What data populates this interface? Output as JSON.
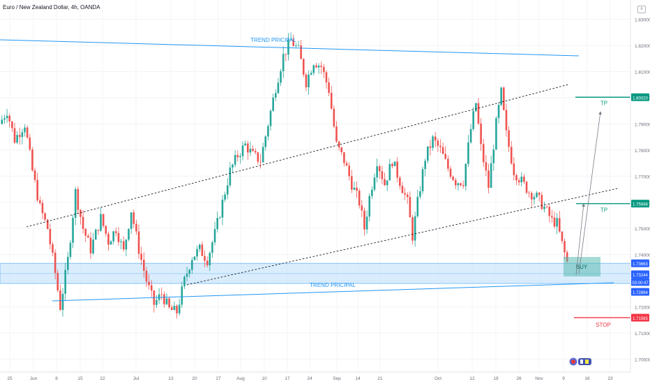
{
  "header": {
    "title": "Euro / New Zealand Dollar, 4h, OANDA"
  },
  "colors": {
    "up": "#26a69a",
    "down": "#ef5350",
    "trendline": "#2196f3",
    "tp": "#089981",
    "stop": "#f23645",
    "zone": "#bbdefb",
    "buy_box": "#4db6ac"
  },
  "annotations": {
    "trend_top": "TREND PRICIPAL",
    "trend_bottom": "TREND PRICIPAL",
    "buy": "BUY",
    "tp1": "TP",
    "tp2": "TP",
    "stop": "STOP"
  },
  "price_badges": {
    "tp1": "1.80020",
    "tp2": "1.75948",
    "zone_top": "1.73663",
    "current": "1.73244",
    "countdown": "03:00:47",
    "zone_bottom": "1.72894",
    "stop": "1.71585"
  },
  "chart_data": {
    "type": "candlestick",
    "symbol": "EURNZD",
    "timeframe": "4h",
    "ylim": [
      1.695,
      1.835
    ],
    "y_ticks": [
      "1.83000",
      "1.82000",
      "1.81000",
      "1.80000",
      "1.79000",
      "1.78000",
      "1.77000",
      "1.76000",
      "1.75000",
      "1.74000",
      "1.73000",
      "1.72000",
      "1.71000",
      "1.70000"
    ],
    "x_ticks": [
      "25",
      "Jun",
      "8",
      "15",
      "22",
      "Jul",
      "13",
      "20",
      "27",
      "Aug",
      "10",
      "17",
      "24",
      "Sep",
      "14",
      "21",
      "Oct",
      "12",
      "19",
      "26",
      "Nov",
      "9",
      "16",
      "23"
    ],
    "price_path": [
      [
        0,
        1.79
      ],
      [
        3,
        1.795
      ],
      [
        6,
        1.784
      ],
      [
        10,
        1.79
      ],
      [
        13,
        1.772
      ],
      [
        16,
        1.758
      ],
      [
        19,
        1.75
      ],
      [
        22,
        1.733
      ],
      [
        24,
        1.72
      ],
      [
        27,
        1.738
      ],
      [
        30,
        1.764
      ],
      [
        33,
        1.75
      ],
      [
        36,
        1.742
      ],
      [
        40,
        1.754
      ],
      [
        43,
        1.745
      ],
      [
        46,
        1.75
      ],
      [
        49,
        1.741
      ],
      [
        52,
        1.757
      ],
      [
        55,
        1.742
      ],
      [
        58,
        1.73
      ],
      [
        61,
        1.721
      ],
      [
        64,
        1.725
      ],
      [
        67,
        1.719
      ],
      [
        70,
        1.718
      ],
      [
        73,
        1.73
      ],
      [
        76,
        1.739
      ],
      [
        79,
        1.742
      ],
      [
        82,
        1.738
      ],
      [
        85,
        1.748
      ],
      [
        88,
        1.76
      ],
      [
        91,
        1.772
      ],
      [
        94,
        1.778
      ],
      [
        97,
        1.782
      ],
      [
        100,
        1.778
      ],
      [
        103,
        1.776
      ],
      [
        106,
        1.79
      ],
      [
        109,
        1.804
      ],
      [
        112,
        1.816
      ],
      [
        115,
        1.822
      ],
      [
        118,
        1.818
      ],
      [
        121,
        1.806
      ],
      [
        124,
        1.814
      ],
      [
        127,
        1.812
      ],
      [
        130,
        1.803
      ],
      [
        133,
        1.782
      ],
      [
        136,
        1.776
      ],
      [
        139,
        1.767
      ],
      [
        142,
        1.76
      ],
      [
        144,
        1.75
      ],
      [
        146,
        1.762
      ],
      [
        149,
        1.776
      ],
      [
        152,
        1.767
      ],
      [
        155,
        1.776
      ],
      [
        158,
        1.768
      ],
      [
        161,
        1.76
      ],
      [
        163,
        1.747
      ],
      [
        165,
        1.76
      ],
      [
        168,
        1.777
      ],
      [
        171,
        1.784
      ],
      [
        174,
        1.78
      ],
      [
        177,
        1.773
      ],
      [
        180,
        1.768
      ],
      [
        183,
        1.768
      ],
      [
        186,
        1.788
      ],
      [
        188,
        1.798
      ],
      [
        190,
        1.781
      ],
      [
        193,
        1.766
      ],
      [
        196,
        1.79
      ],
      [
        198,
        1.802
      ],
      [
        200,
        1.786
      ],
      [
        203,
        1.772
      ],
      [
        206,
        1.768
      ],
      [
        209,
        1.764
      ],
      [
        212,
        1.762
      ],
      [
        215,
        1.758
      ],
      [
        218,
        1.753
      ],
      [
        220,
        1.752
      ],
      [
        222,
        1.744
      ],
      [
        224,
        1.737
      ]
    ]
  }
}
